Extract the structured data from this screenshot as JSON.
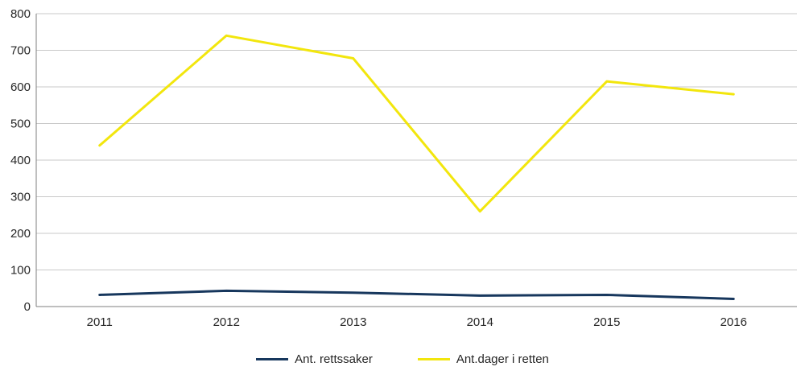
{
  "chart_data": {
    "type": "line",
    "title": "",
    "xlabel": "",
    "ylabel": "",
    "categories": [
      "2011",
      "2012",
      "2013",
      "2014",
      "2015",
      "2016"
    ],
    "series": [
      {
        "name": "Ant. rettssaker",
        "color": "#17375d",
        "values": [
          32,
          43,
          38,
          30,
          32,
          21
        ]
      },
      {
        "name": "Ant.dager i retten",
        "color": "#f2e60d",
        "values": [
          440,
          740,
          678,
          260,
          615,
          580
        ]
      }
    ],
    "ylim": [
      0,
      800
    ],
    "ytick_step": 100,
    "yticks": [
      0,
      100,
      200,
      300,
      400,
      500,
      600,
      700,
      800
    ],
    "grid": "horizontal",
    "legend_position": "bottom"
  },
  "style": {
    "grid_color": "#c9c9c9",
    "axis_color": "#7f7f7f",
    "text_color": "#262626",
    "background": "#ffffff"
  }
}
